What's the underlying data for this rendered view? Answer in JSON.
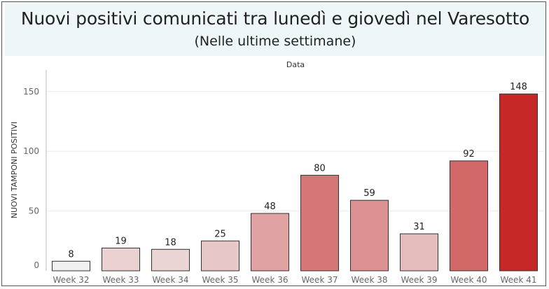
{
  "header": {
    "title": "Nuovi positivi comunicati tra lunedì e giovedì nel Varesotto",
    "subtitle": "(Nelle ultime settimane)"
  },
  "chart_data": {
    "type": "bar",
    "column_header": "Data",
    "ylabel": "NUOVI TAMPONI POSITIVI",
    "categories": [
      "Week 32",
      "Week 33",
      "Week 34",
      "Week 35",
      "Week 36",
      "Week 37",
      "Week 38",
      "Week 39",
      "Week 40",
      "Week 41"
    ],
    "values": [
      8,
      19,
      18,
      25,
      48,
      80,
      59,
      31,
      92,
      148
    ],
    "ylim": [
      0,
      160
    ],
    "yticks": [
      0,
      50,
      100,
      150
    ],
    "grid": true,
    "colors": {
      "low": "#f0f0f0",
      "high": "#c62828",
      "bar_outline": "#333333",
      "gridline": "#ebebeb",
      "axis": "#bbbbbb",
      "tick_text": "#666666",
      "value_text": "#222222"
    }
  }
}
